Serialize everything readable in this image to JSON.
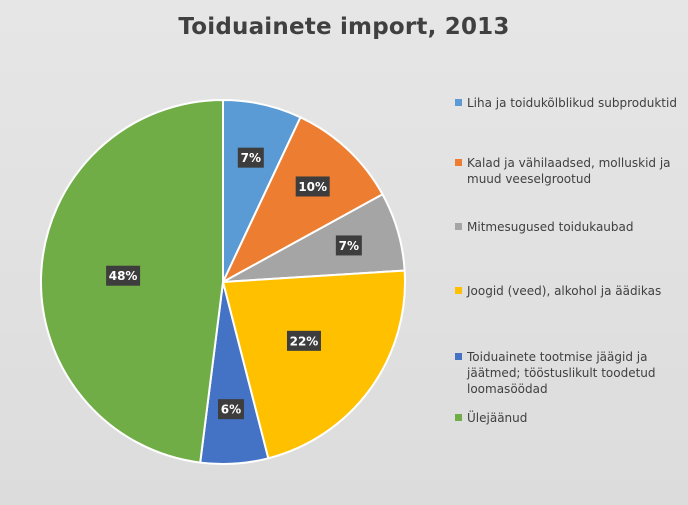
{
  "chart_data": {
    "type": "pie",
    "title": "Toiduainete import, 2013",
    "legend_position": "right",
    "slices": [
      {
        "label": "Liha ja toidukõlblikud subproduktid",
        "value": 7,
        "display": "7%",
        "color": "#5b9bd5"
      },
      {
        "label": "Kalad ja vähilaadsed, molluskid ja muud veeselgrootud",
        "value": 10,
        "display": "10%",
        "color": "#ed7d31"
      },
      {
        "label": "Mitmesugused toidukaubad",
        "value": 7,
        "display": "7%",
        "color": "#a5a5a5"
      },
      {
        "label": "Joogid (veed), alkohol ja äädikas",
        "value": 22,
        "display": "22%",
        "color": "#ffc000"
      },
      {
        "label": "Toiduainete tootmise jäägid ja jäätmed; tööstuslikult toodetud loomasöödad",
        "value": 6,
        "display": "6%",
        "color": "#4472c4"
      },
      {
        "label": "Ülejäänud",
        "value": 48,
        "display": "48%",
        "color": "#70ad47"
      }
    ]
  }
}
